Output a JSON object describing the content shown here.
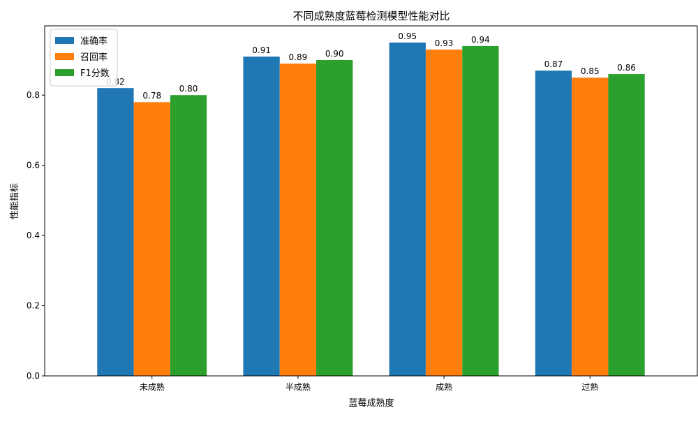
{
  "chart_data": {
    "type": "bar",
    "title": "不同成熟度蓝莓检测模型性能对比",
    "xlabel": "蓝莓成熟度",
    "ylabel": "性能指标",
    "categories": [
      "未成熟",
      "半成熟",
      "成熟",
      "过熟"
    ],
    "series": [
      {
        "name": "准确率",
        "color": "#1f77b4",
        "values": [
          0.82,
          0.91,
          0.95,
          0.87
        ]
      },
      {
        "name": "召回率",
        "color": "#ff7f0e",
        "values": [
          0.78,
          0.89,
          0.93,
          0.85
        ]
      },
      {
        "name": "F1分数",
        "color": "#2ca02c",
        "values": [
          0.8,
          0.9,
          0.94,
          0.86
        ]
      }
    ],
    "ylim": [
      0,
      0.9975
    ],
    "yticks": [
      0.0,
      0.2,
      0.4,
      0.6,
      0.8
    ],
    "ytick_labels": [
      "0.0",
      "0.2",
      "0.4",
      "0.6",
      "0.8"
    ],
    "grid": false,
    "legend_position": "top-left",
    "data_labels": true
  }
}
